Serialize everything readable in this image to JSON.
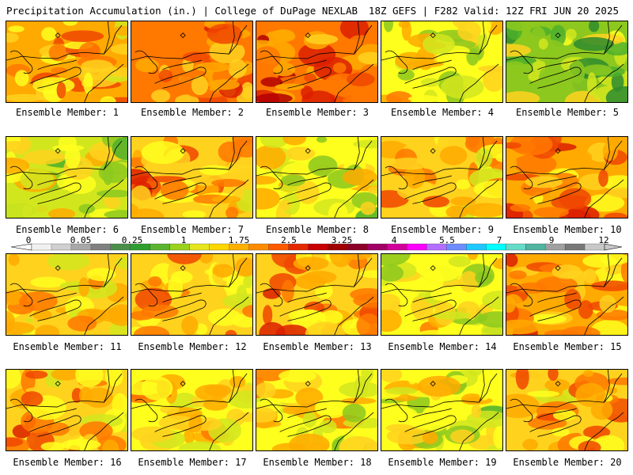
{
  "header": {
    "title_left": "Precipitation Accumulation (in.) | College of DuPage NEXLAB",
    "title_right": "18Z GEFS | F282 Valid: 12Z FRI JUN 20 2025"
  },
  "caption_prefix": "Ensemble Member: ",
  "members": [
    {
      "id": 1,
      "label": "Ensemble Member: 1",
      "amount": 2.6,
      "wet_west": 2.6
    },
    {
      "id": 2,
      "label": "Ensemble Member: 2",
      "amount": 3.0,
      "wet_west": 3.2
    },
    {
      "id": 3,
      "label": "Ensemble Member: 3",
      "amount": 3.2,
      "wet_west": 3.0
    },
    {
      "id": 4,
      "label": "Ensemble Member: 4",
      "amount": 1.6,
      "wet_west": 2.2
    },
    {
      "id": 5,
      "label": "Ensemble Member: 5",
      "amount": 0.9,
      "wet_west": 1.4
    },
    {
      "id": 6,
      "label": "Ensemble Member: 6",
      "amount": 1.5,
      "wet_west": 2.0
    },
    {
      "id": 7,
      "label": "Ensemble Member: 7",
      "amount": 2.2,
      "wet_west": 3.6
    },
    {
      "id": 8,
      "label": "Ensemble Member: 8",
      "amount": 1.6,
      "wet_west": 1.8
    },
    {
      "id": 9,
      "label": "Ensemble Member: 9",
      "amount": 2.2,
      "wet_west": 3.0
    },
    {
      "id": 10,
      "label": "Ensemble Member: 10",
      "amount": 2.8,
      "wet_west": 3.0
    },
    {
      "id": 11,
      "label": "Ensemble Member: 11",
      "amount": 2.2,
      "wet_west": 2.6
    },
    {
      "id": 12,
      "label": "Ensemble Member: 12",
      "amount": 2.4,
      "wet_west": 2.8
    },
    {
      "id": 13,
      "label": "Ensemble Member: 13",
      "amount": 2.4,
      "wet_west": 3.6
    },
    {
      "id": 14,
      "label": "Ensemble Member: 14",
      "amount": 1.8,
      "wet_west": 2.0
    },
    {
      "id": 15,
      "label": "Ensemble Member: 15",
      "amount": 2.6,
      "wet_west": 3.0
    },
    {
      "id": 16,
      "label": "Ensemble Member: 16",
      "amount": 2.4,
      "wet_west": 2.8
    },
    {
      "id": 17,
      "label": "Ensemble Member: 17",
      "amount": 2.0,
      "wet_west": 3.2
    },
    {
      "id": 18,
      "label": "Ensemble Member: 18",
      "amount": 2.0,
      "wet_west": 2.2
    },
    {
      "id": 19,
      "label": "Ensemble Member: 19",
      "amount": 1.6,
      "wet_west": 1.8
    },
    {
      "id": 20,
      "label": "Ensemble Member: 20",
      "amount": 2.4,
      "wet_west": 2.6
    }
  ],
  "colorbar": {
    "labels": [
      "0",
      "0.05",
      "0.25",
      "1",
      "1.75",
      "2.5",
      "3.25",
      "4",
      "5.5",
      "7",
      "9",
      "12"
    ],
    "colors": [
      "#f0f0f0",
      "#d0d0d0",
      "#a8a8a8",
      "#808080",
      "#4a8f4a",
      "#2e9e2e",
      "#5ab430",
      "#9ad21e",
      "#e6e61e",
      "#ffd700",
      "#ffb000",
      "#ff8c00",
      "#ff5a00",
      "#e62800",
      "#c80000",
      "#a00000",
      "#8c0028",
      "#a00064",
      "#d2009a",
      "#ff00ff",
      "#b46eff",
      "#6e8cff",
      "#1ec8ff",
      "#00ffff",
      "#64dcc8",
      "#50b4a0",
      "#a0a0a0",
      "#787878",
      "#c8c8c8"
    ],
    "scale_colors": [
      "#2e8b2e",
      "#4caf2c",
      "#8cc81e",
      "#d2e61e",
      "#ffff1e",
      "#ffd21e",
      "#ffaa00",
      "#ff7800",
      "#f04600",
      "#dc1e00",
      "#b40000",
      "#8c0000",
      "#a0005a",
      "#d200a0",
      "#ff00ff",
      "#8ce6ff"
    ]
  }
}
